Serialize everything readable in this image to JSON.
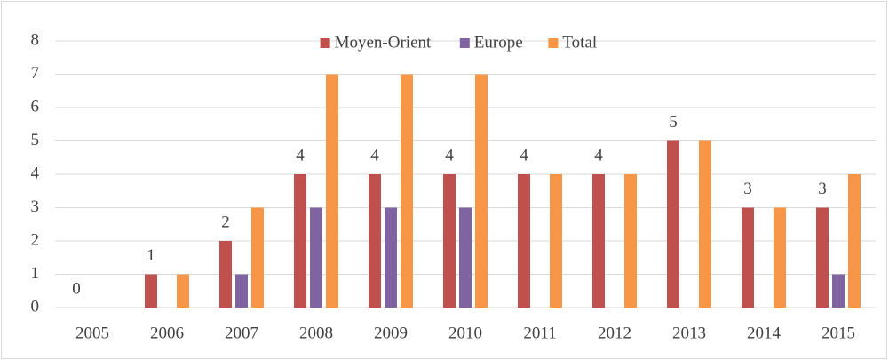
{
  "chart_data": {
    "type": "bar",
    "categories": [
      "2005",
      "2006",
      "2007",
      "2008",
      "2009",
      "2010",
      "2011",
      "2012",
      "2013",
      "2014",
      "2015"
    ],
    "series": [
      {
        "name": "Moyen-Orient",
        "color": "#c0504d",
        "values": [
          0,
          1,
          2,
          4,
          4,
          4,
          4,
          4,
          5,
          3,
          3
        ],
        "show_labels": true
      },
      {
        "name": "Europe",
        "color": "#8064a2",
        "values": [
          0,
          0,
          1,
          3,
          3,
          3,
          0,
          0,
          0,
          0,
          1
        ],
        "show_labels": false
      },
      {
        "name": "Total",
        "color": "#f79646",
        "values": [
          0,
          1,
          3,
          7,
          7,
          7,
          4,
          4,
          5,
          3,
          4
        ],
        "show_labels": false
      }
    ],
    "ylim": [
      0,
      8
    ],
    "yticks": [
      0,
      1,
      2,
      3,
      4,
      5,
      6,
      7,
      8
    ],
    "grid": true,
    "legend": "top"
  }
}
